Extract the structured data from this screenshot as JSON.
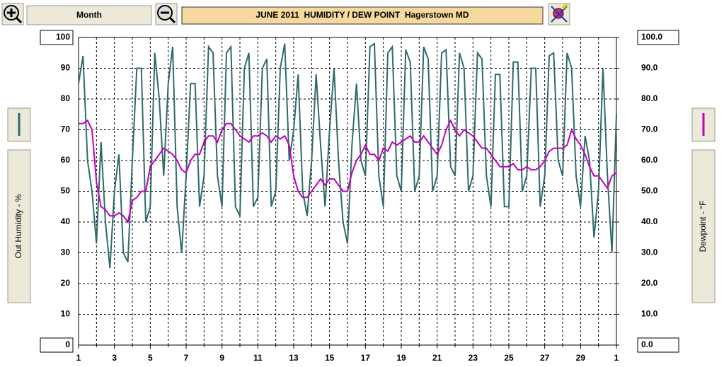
{
  "toolbar": {
    "range_button": "Month"
  },
  "chart_data": {
    "type": "line",
    "title": "JUNE 2011  HUMIDITY / DEW POINT  Hagerstown MD",
    "x": [
      1,
      1.25,
      1.5,
      1.75,
      2,
      2.25,
      2.5,
      2.75,
      3,
      3.25,
      3.5,
      3.75,
      4,
      4.25,
      4.5,
      4.75,
      5,
      5.25,
      5.5,
      5.75,
      6,
      6.25,
      6.5,
      6.75,
      7,
      7.25,
      7.5,
      7.75,
      8,
      8.25,
      8.5,
      8.75,
      9,
      9.25,
      9.5,
      9.75,
      10,
      10.25,
      10.5,
      10.75,
      11,
      11.25,
      11.5,
      11.75,
      12,
      12.25,
      12.5,
      12.75,
      13,
      13.25,
      13.5,
      13.75,
      14,
      14.25,
      14.5,
      14.75,
      15,
      15.25,
      15.5,
      15.75,
      16,
      16.25,
      16.5,
      16.75,
      17,
      17.25,
      17.5,
      17.75,
      18,
      18.25,
      18.5,
      18.75,
      19,
      19.25,
      19.5,
      19.75,
      20,
      20.25,
      20.5,
      20.75,
      21,
      21.25,
      21.5,
      21.75,
      22,
      22.25,
      22.5,
      22.75,
      23,
      23.25,
      23.5,
      23.75,
      24,
      24.25,
      24.5,
      24.75,
      25,
      25.25,
      25.5,
      25.75,
      26,
      26.25,
      26.5,
      26.75,
      27,
      27.25,
      27.5,
      27.75,
      28,
      28.25,
      28.5,
      28.75,
      29,
      29.25,
      29.5,
      29.75,
      30,
      30.25,
      30.5,
      30.75,
      31
    ],
    "series": [
      {
        "name": "Out Humidity - %",
        "color": "#2f6b6b",
        "values": [
          85,
          94,
          60,
          50,
          33,
          66,
          40,
          25,
          50,
          62,
          30,
          27,
          60,
          90,
          90,
          40,
          45,
          95,
          80,
          55,
          85,
          97,
          45,
          30,
          55,
          85,
          85,
          45,
          55,
          97,
          95,
          55,
          45,
          95,
          97,
          45,
          42,
          90,
          95,
          45,
          48,
          90,
          93,
          45,
          50,
          90,
          98,
          60,
          70,
          88,
          50,
          42,
          60,
          88,
          65,
          45,
          70,
          90,
          60,
          40,
          33,
          65,
          85,
          60,
          55,
          97,
          98,
          55,
          45,
          95,
          97,
          55,
          50,
          96,
          92,
          50,
          55,
          97,
          93,
          50,
          55,
          95,
          96,
          58,
          55,
          95,
          90,
          50,
          55,
          95,
          93,
          55,
          45,
          88,
          88,
          45,
          45,
          92,
          92,
          50,
          55,
          90,
          90,
          45,
          55,
          94,
          95,
          60,
          55,
          95,
          90,
          55,
          45,
          68,
          60,
          35,
          50,
          90,
          55,
          30,
          75
        ]
      },
      {
        "name": "Dewpoint - °F",
        "color": "#c000c0",
        "axis": "y2",
        "values": [
          72,
          72,
          73,
          70,
          53,
          45,
          44,
          42,
          42,
          43,
          42,
          40,
          47,
          48,
          50,
          50,
          58,
          60,
          62,
          64,
          63,
          62,
          60,
          57,
          56,
          60,
          62,
          62,
          66,
          68,
          68,
          66,
          70,
          72,
          72,
          70,
          68,
          67,
          66,
          68,
          68,
          69,
          68,
          66,
          68,
          67,
          68,
          65,
          55,
          50,
          48,
          48,
          50,
          52,
          54,
          52,
          54,
          54,
          52,
          50,
          50,
          56,
          60,
          62,
          65,
          62,
          62,
          60,
          64,
          63,
          66,
          65,
          66,
          67,
          68,
          66,
          66,
          68,
          66,
          64,
          62,
          65,
          70,
          73,
          70,
          68,
          70,
          69,
          68,
          66,
          64,
          64,
          62,
          60,
          58,
          58,
          58,
          59,
          57,
          57,
          58,
          57,
          57,
          58,
          60,
          63,
          64,
          64,
          64,
          65,
          70,
          67,
          65,
          62,
          58,
          55,
          55,
          53,
          51,
          55,
          56
        ]
      }
    ],
    "xlim": [
      1,
      31
    ],
    "xticks": [
      1,
      3,
      5,
      7,
      9,
      11,
      13,
      15,
      17,
      19,
      21,
      23,
      25,
      27,
      29,
      {
        "value": 31,
        "label": "1"
      }
    ],
    "xminorticks": [
      2,
      4,
      6,
      8,
      10,
      12,
      14,
      16,
      18,
      20,
      22,
      24,
      26,
      28,
      30
    ],
    "ylim": [
      0,
      100
    ],
    "yticks": [
      0,
      10,
      20,
      30,
      40,
      50,
      60,
      70,
      80,
      90,
      100
    ],
    "y2lim": [
      0,
      100
    ],
    "y2ticks": [
      {
        "value": 0,
        "label": "0.0"
      },
      {
        "value": 10,
        "label": "10.0"
      },
      {
        "value": 20,
        "label": "20.0"
      },
      {
        "value": 30,
        "label": "30.0"
      },
      {
        "value": 40,
        "label": "40.0"
      },
      {
        "value": 50,
        "label": "50.0"
      },
      {
        "value": 60,
        "label": "60.0"
      },
      {
        "value": 70,
        "label": "70.0"
      },
      {
        "value": 80,
        "label": "80.0"
      },
      {
        "value": 90,
        "label": "90.0"
      },
      {
        "value": 100,
        "label": "100.0"
      }
    ],
    "grid": true
  }
}
